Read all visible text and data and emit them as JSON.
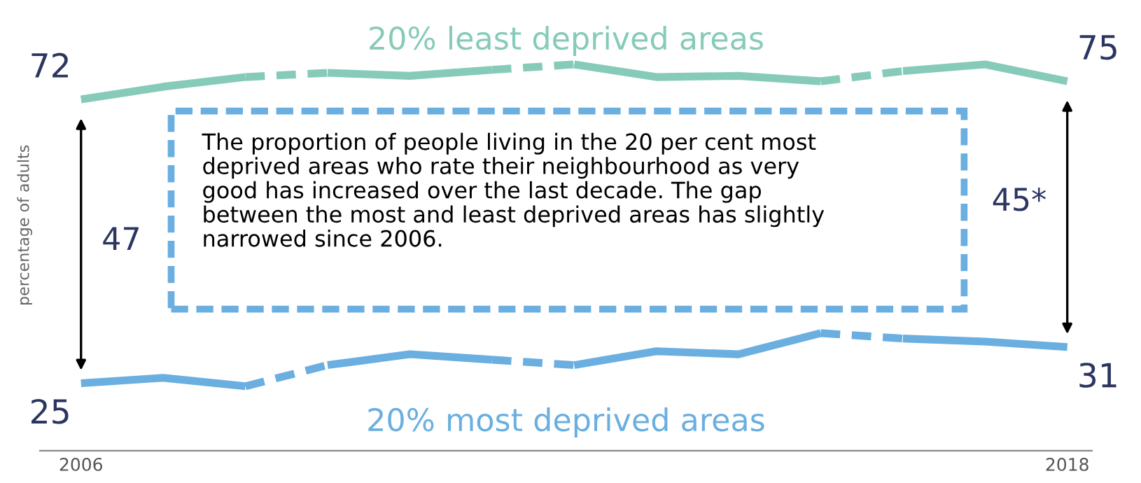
{
  "chart_data": {
    "type": "line",
    "ylabel": "percentage of adults",
    "x": [
      2006,
      2007,
      2008,
      2009,
      2010,
      2011,
      2012,
      2013,
      2014,
      2015,
      2016,
      2017,
      2018
    ],
    "xlim": [
      2005.5,
      2018.3
    ],
    "xticks": [
      2006,
      2018
    ],
    "tick_labels": "x",
    "grid": false,
    "marker": "none",
    "series": [
      {
        "name": "20% least deprived areas",
        "color": "#86cbb9",
        "line_style": "solid",
        "values": [
          72,
          74.1,
          75.7,
          null,
          null,
          null,
          null,
          null,
          null,
          null,
          null,
          null,
          null
        ],
        "value_labels": [
          "72",
          null,
          null,
          null,
          null,
          null,
          null,
          null,
          null,
          null,
          null,
          null,
          null
        ]
      },
      {
        "color": "#86cbb9",
        "line_style": "dashed",
        "values": [
          null,
          null,
          75.7,
          76.4,
          null,
          null,
          null,
          null,
          null,
          null,
          null,
          null,
          null
        ]
      },
      {
        "color": "#86cbb9",
        "line_style": "solid",
        "values": [
          null,
          null,
          null,
          76.4,
          75.9,
          76.9,
          null,
          null,
          null,
          null,
          null,
          null,
          null
        ]
      },
      {
        "color": "#86cbb9",
        "line_style": "dashed",
        "values": [
          null,
          null,
          null,
          null,
          null,
          76.9,
          77.8,
          null,
          null,
          null,
          null,
          null,
          null
        ]
      },
      {
        "color": "#86cbb9",
        "line_style": "solid",
        "values": [
          null,
          null,
          null,
          null,
          null,
          null,
          77.8,
          75.7,
          75.9,
          75.0,
          null,
          null,
          null
        ]
      },
      {
        "color": "#86cbb9",
        "line_style": "dashed",
        "values": [
          null,
          null,
          null,
          null,
          null,
          null,
          null,
          null,
          null,
          75.0,
          76.7,
          null,
          null
        ]
      },
      {
        "color": "#86cbb9",
        "line_style": "solid",
        "values": [
          null,
          null,
          null,
          null,
          null,
          null,
          null,
          null,
          null,
          null,
          76.7,
          77.8,
          75
        ],
        "value_labels": [
          null,
          null,
          null,
          null,
          null,
          null,
          null,
          null,
          null,
          null,
          null,
          null,
          "75"
        ]
      },
      {
        "name": "20% most deprived areas",
        "color": "#6aafe0",
        "line_style": "solid",
        "values": [
          25,
          25.9,
          24.5,
          null,
          null,
          null,
          null,
          null,
          null,
          null,
          null,
          null,
          null
        ],
        "value_labels": [
          "25",
          null,
          null,
          null,
          null,
          null,
          null,
          null,
          null,
          null,
          null,
          null,
          null
        ]
      },
      {
        "color": "#6aafe0",
        "line_style": "dashed",
        "values": [
          null,
          null,
          24.5,
          28.0,
          null,
          null,
          null,
          null,
          null,
          null,
          null,
          null,
          null
        ]
      },
      {
        "color": "#6aafe0",
        "line_style": "solid",
        "values": [
          null,
          null,
          null,
          28.0,
          29.8,
          28.9,
          null,
          null,
          null,
          null,
          null,
          null,
          null
        ]
      },
      {
        "color": "#6aafe0",
        "line_style": "dashed",
        "values": [
          null,
          null,
          null,
          null,
          null,
          28.9,
          28.0,
          null,
          null,
          null,
          null,
          null,
          null
        ]
      },
      {
        "color": "#6aafe0",
        "line_style": "solid",
        "values": [
          null,
          null,
          null,
          null,
          null,
          null,
          28.0,
          30.3,
          29.8,
          33.3,
          null,
          null,
          null
        ]
      },
      {
        "color": "#6aafe0",
        "line_style": "dashed",
        "values": [
          null,
          null,
          null,
          null,
          null,
          null,
          null,
          null,
          null,
          33.3,
          32.4,
          null,
          null
        ]
      },
      {
        "color": "#6aafe0",
        "line_style": "solid",
        "values": [
          null,
          null,
          null,
          null,
          null,
          null,
          null,
          null,
          null,
          null,
          32.4,
          31.9,
          31
        ],
        "value_labels": [
          null,
          null,
          null,
          null,
          null,
          null,
          null,
          null,
          null,
          null,
          null,
          null,
          "31"
        ]
      }
    ],
    "annotations": [
      "47",
      "45*",
      "The proportion of people living in the 20 per cent most\ndeprived areas who rate their neighbourhood as very\ngood has increased over the last decade. The gap\nbetween the most and least deprived areas has slightly\nnarrowed since 2006."
    ]
  }
}
